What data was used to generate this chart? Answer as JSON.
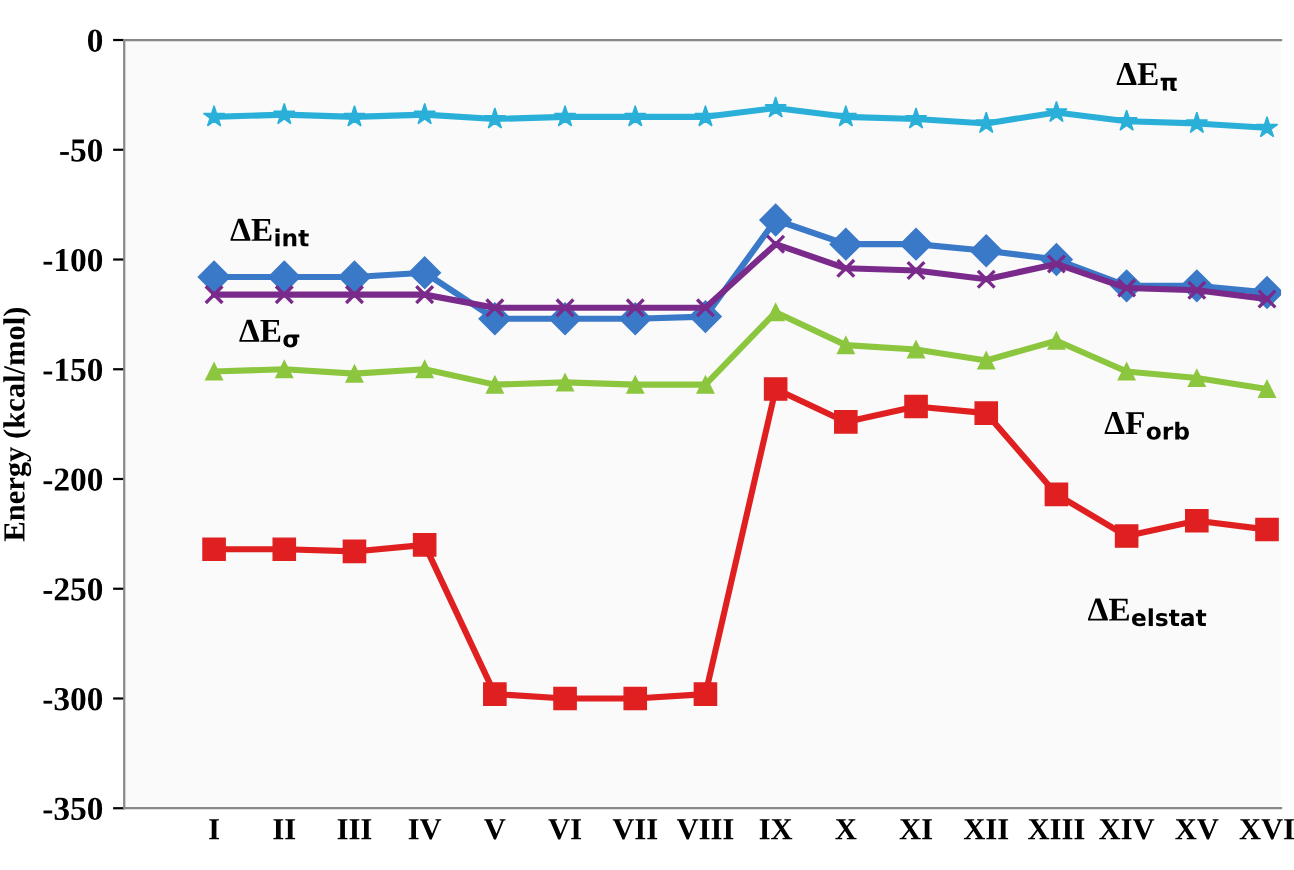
{
  "chart_data": {
    "type": "line",
    "ylabel": "Energy (kcal/mol)",
    "categories": [
      "I",
      "II",
      "III",
      "IV",
      "V",
      "VI",
      "VII",
      "VIII",
      "IX",
      "X",
      "XI",
      "XII",
      "XIII",
      "XIV",
      "XV",
      "XVI"
    ],
    "ylim": [
      -350,
      0
    ],
    "yticks": [
      -350,
      -300,
      -250,
      -200,
      -150,
      -100,
      -50,
      0
    ],
    "grid": false,
    "legend": false,
    "line_style": "solid",
    "series": [
      {
        "name": "ΔE$_{π}$",
        "color": "#2ab0d8",
        "marker": "star",
        "values": [
          -35,
          -34,
          -35,
          -34,
          -36,
          -35,
          -35,
          -35,
          -31,
          -35,
          -36,
          -38,
          -33,
          -37,
          -38,
          -40
        ]
      },
      {
        "name": "ΔE$_{int}$",
        "color": "#3a78c8",
        "marker": "diamond",
        "values": [
          -108,
          -108,
          -108,
          -106,
          -127,
          -127,
          -127,
          -126,
          -82,
          -93,
          -93,
          -96,
          -100,
          -112,
          -112,
          -115
        ]
      },
      {
        "name": "ΔE$_{σ}$",
        "color": "#7a2a8a",
        "marker": "cross",
        "values": [
          -116,
          -116,
          -116,
          -116,
          -122,
          -122,
          -122,
          -122,
          -93,
          -104,
          -105,
          -109,
          -102,
          -113,
          -114,
          -118
        ]
      },
      {
        "name": "ΔF$_{orb}$",
        "color": "#8cc63f",
        "marker": "triangle",
        "values": [
          -151,
          -150,
          -152,
          -150,
          -157,
          -156,
          -157,
          -157,
          -124,
          -139,
          -141,
          -146,
          -137,
          -151,
          -154,
          -159
        ]
      },
      {
        "name": "ΔE$_{elstat}$",
        "color": "#e02020",
        "marker": "square",
        "values": [
          -232,
          -232,
          -233,
          -230,
          -298,
          -300,
          -300,
          -298,
          -159,
          -174,
          -167,
          -170,
          -207,
          -226,
          -219,
          -223
        ]
      }
    ]
  }
}
